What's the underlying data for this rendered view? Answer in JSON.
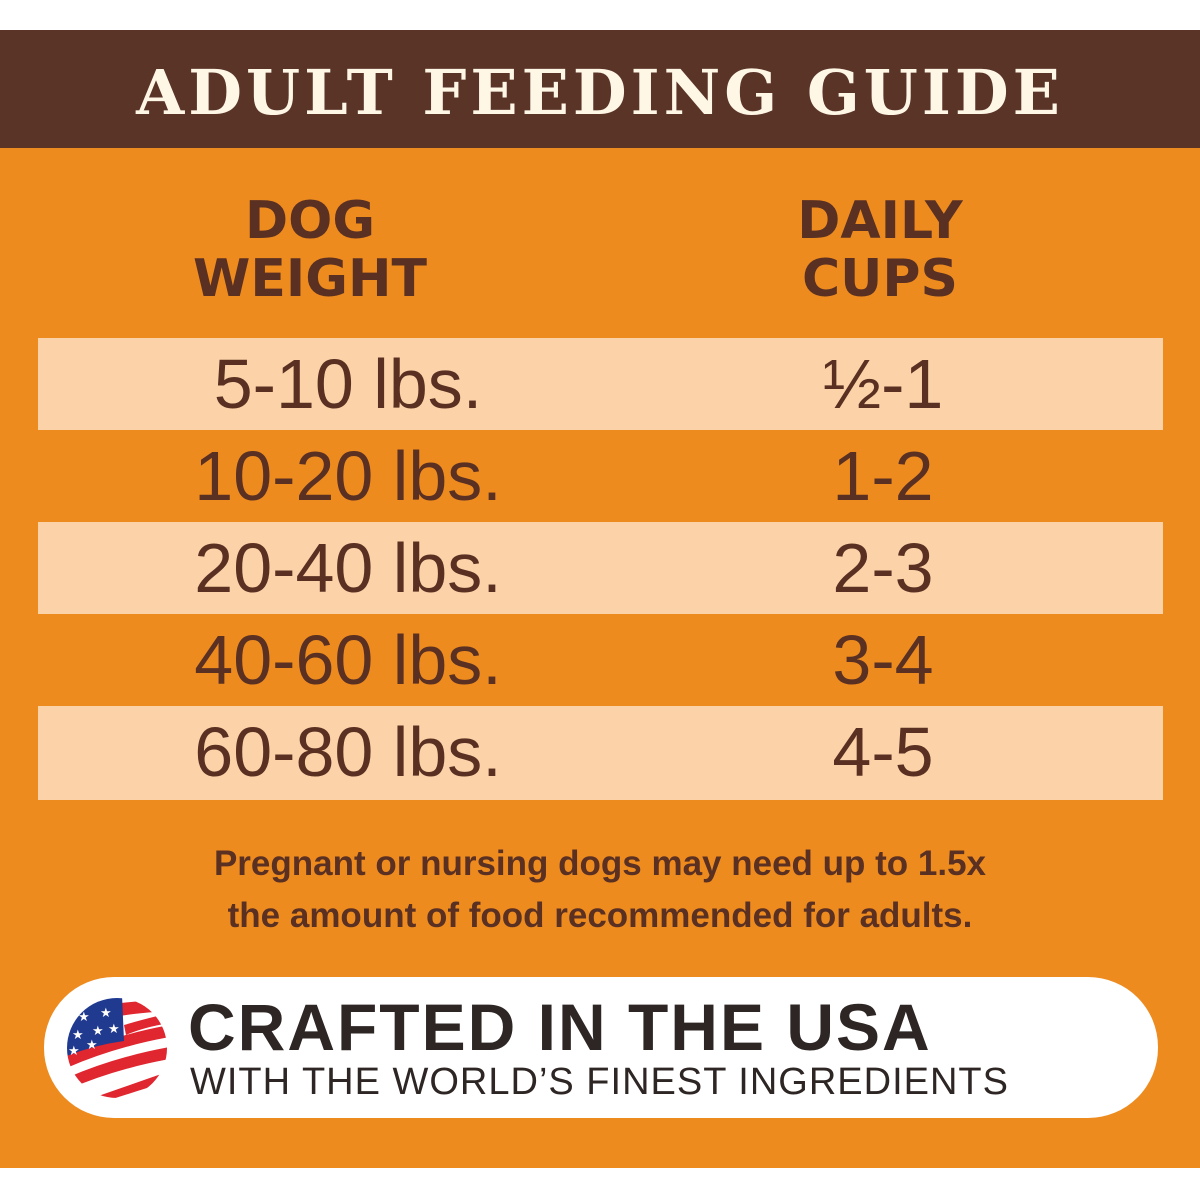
{
  "title": "ADULT FEEDING GUIDE",
  "table": {
    "headers": [
      [
        "DOG",
        "WEIGHT"
      ],
      [
        "DAILY",
        "CUPS"
      ]
    ],
    "rows": [
      {
        "weight": "5-10 lbs.",
        "cups": "½-1"
      },
      {
        "weight": "10-20 lbs.",
        "cups": "1-2"
      },
      {
        "weight": "20-40 lbs.",
        "cups": "2-3"
      },
      {
        "weight": "40-60 lbs.",
        "cups": "3-4"
      },
      {
        "weight": "60-80 lbs.",
        "cups": "4-5"
      }
    ]
  },
  "note": [
    "Pregnant or nursing dogs may need up to 1.5x",
    "the amount of food recommended for adults."
  ],
  "badge": {
    "icon": "us-flag-icon",
    "headline": "CRAFTED IN THE USA",
    "subline": "WITH THE WORLD’S FINEST INGREDIENTS"
  },
  "colors": {
    "header": "#5b3428",
    "background": "#ee8b1f",
    "row_light": "#fcd3a8",
    "text": "#5a3022"
  }
}
